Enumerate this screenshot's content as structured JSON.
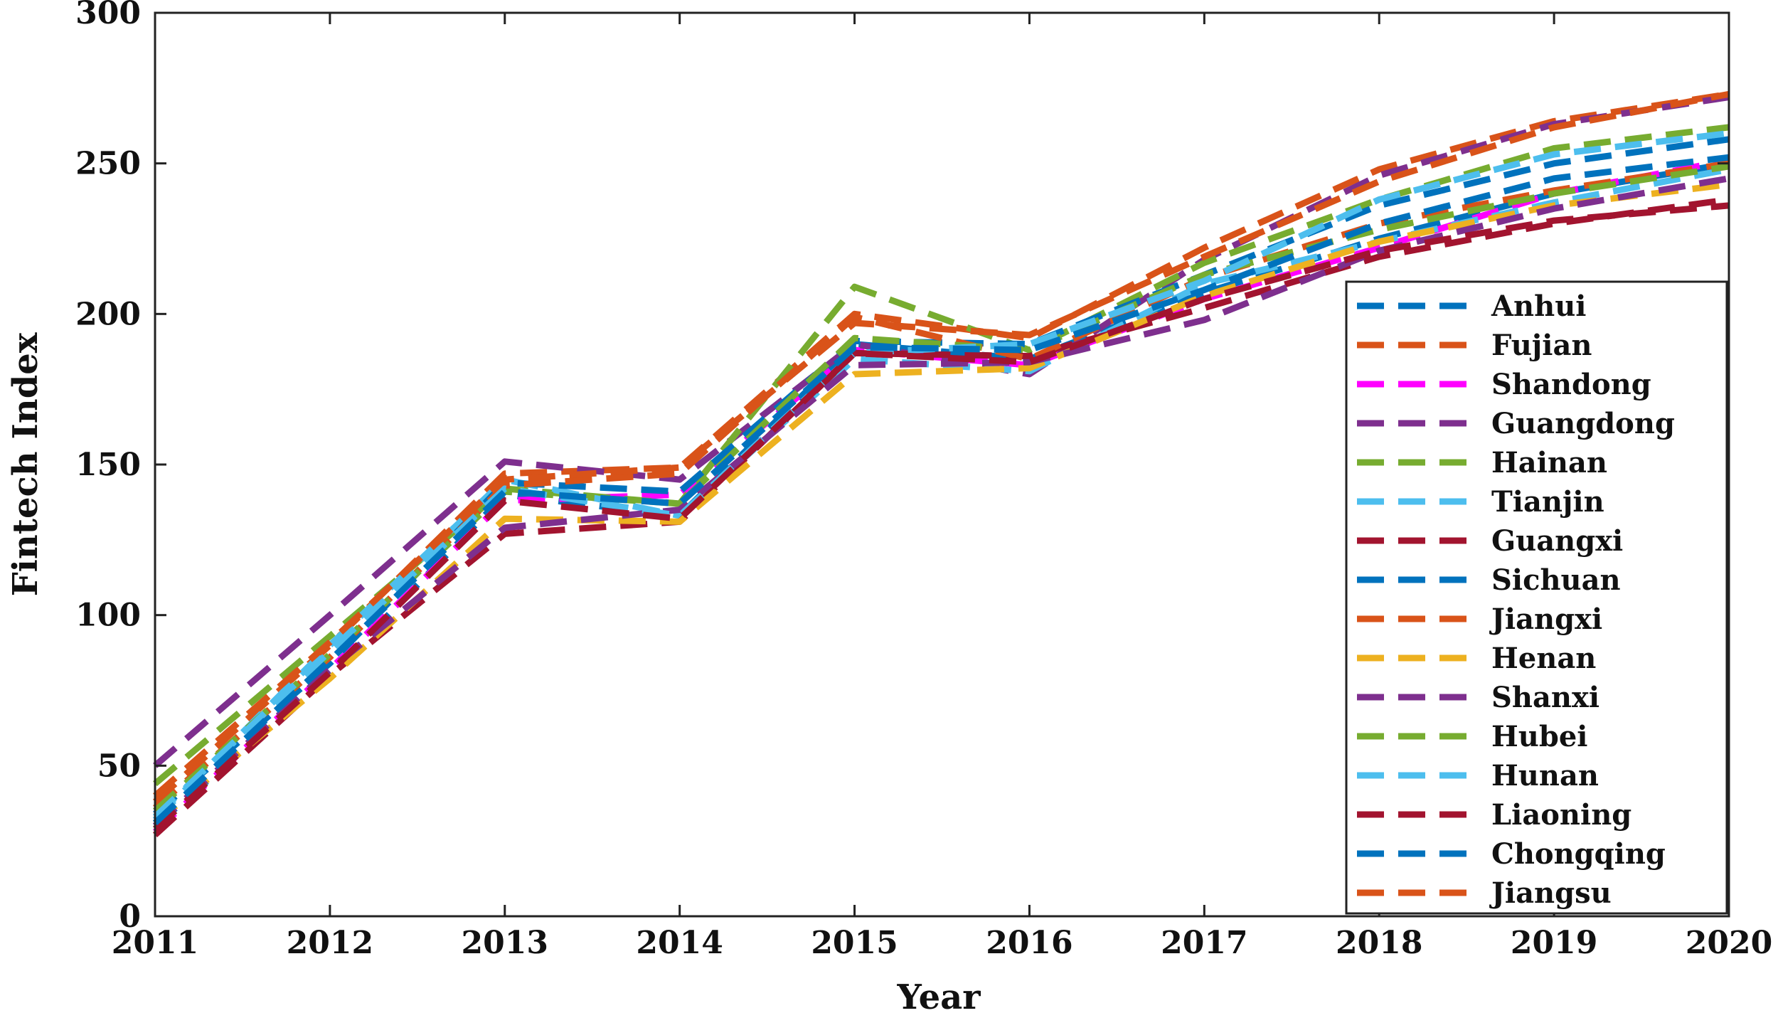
{
  "chart_data": {
    "type": "line",
    "title": "",
    "xlabel": "Year",
    "ylabel": "Fintech Index",
    "x": [
      2011,
      2012,
      2013,
      2014,
      2015,
      2016,
      2017,
      2018,
      2019,
      2020
    ],
    "xlim": [
      2011,
      2020
    ],
    "ylim": [
      0,
      300
    ],
    "yticks": [
      0,
      50,
      100,
      150,
      200,
      250,
      300
    ],
    "grid": false,
    "legend_position": "bottom-right",
    "series": [
      {
        "name": "Anhui",
        "color": "#0072BD",
        "values": [
          30,
          80,
          140,
          133,
          190,
          185,
          207,
          225,
          240,
          250
        ]
      },
      {
        "name": "Fujian",
        "color": "#D95319",
        "values": [
          38,
          90,
          147,
          149,
          200,
          192,
          222,
          248,
          264,
          273
        ]
      },
      {
        "name": "Shandong",
        "color": "#FF00FF",
        "values": [
          28,
          82,
          138,
          140,
          188,
          183,
          205,
          222,
          240,
          251
        ]
      },
      {
        "name": "Guangdong",
        "color": "#7E2F8E",
        "values": [
          50,
          100,
          151,
          145,
          190,
          180,
          218,
          246,
          263,
          272
        ]
      },
      {
        "name": "Hainan",
        "color": "#77AC30",
        "values": [
          44,
          93,
          142,
          137,
          209,
          188,
          217,
          238,
          255,
          262
        ]
      },
      {
        "name": "Tianjin",
        "color": "#4DBEEE",
        "values": [
          32,
          90,
          145,
          133,
          185,
          181,
          210,
          224,
          237,
          248
        ]
      },
      {
        "name": "Guangxi",
        "color": "#A2142F",
        "values": [
          27,
          80,
          127,
          131,
          187,
          186,
          202,
          219,
          230,
          238
        ]
      },
      {
        "name": "Sichuan",
        "color": "#0072BD",
        "values": [
          34,
          84,
          144,
          141,
          191,
          190,
          213,
          236,
          250,
          258
        ]
      },
      {
        "name": "Jiangxi",
        "color": "#D95319",
        "values": [
          36,
          86,
          143,
          147,
          199,
          185,
          212,
          230,
          241,
          250
        ]
      },
      {
        "name": "Henan",
        "color": "#EDB120",
        "values": [
          31,
          79,
          132,
          131,
          180,
          182,
          206,
          224,
          236,
          243
        ]
      },
      {
        "name": "Shanxi",
        "color": "#7E2F8E",
        "values": [
          30,
          82,
          129,
          135,
          183,
          184,
          198,
          221,
          235,
          245
        ]
      },
      {
        "name": "Hubei",
        "color": "#77AC30",
        "values": [
          35,
          87,
          141,
          137,
          192,
          188,
          213,
          228,
          240,
          249
        ]
      },
      {
        "name": "Hunan",
        "color": "#4DBEEE",
        "values": [
          33,
          88,
          142,
          133,
          187,
          190,
          211,
          238,
          253,
          260
        ]
      },
      {
        "name": "Liaoning",
        "color": "#A2142F",
        "values": [
          29,
          81,
          138,
          132,
          187,
          184,
          205,
          221,
          231,
          236
        ]
      },
      {
        "name": "Chongqing",
        "color": "#0072BD",
        "values": [
          31,
          85,
          141,
          137,
          189,
          188,
          208,
          230,
          245,
          252
        ]
      },
      {
        "name": "Jiangsu",
        "color": "#D95319",
        "values": [
          40,
          91,
          145,
          149,
          197,
          193,
          219,
          244,
          262,
          273
        ]
      }
    ]
  }
}
